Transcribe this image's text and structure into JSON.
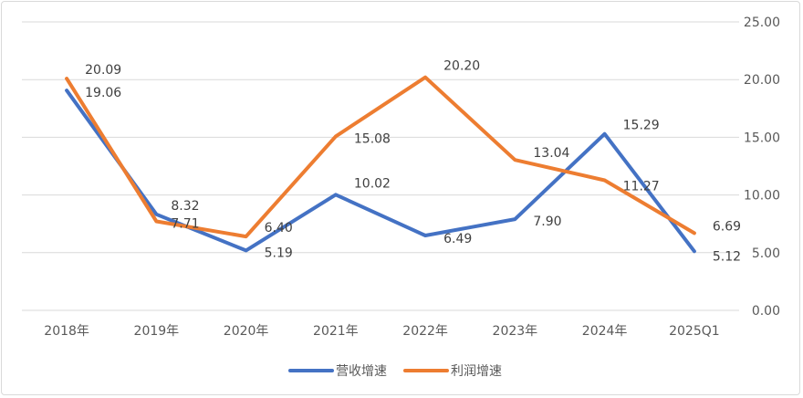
{
  "chart_data": {
    "type": "line",
    "categories": [
      "2018年",
      "2019年",
      "2020年",
      "2021年",
      "2022年",
      "2023年",
      "2024年",
      "2025Q1"
    ],
    "series": [
      {
        "name": "营收增速",
        "color": "#4472C4",
        "values": [
          19.06,
          8.32,
          5.19,
          10.02,
          6.49,
          7.9,
          15.29,
          5.12
        ]
      },
      {
        "name": "利润增速",
        "color": "#ED7D31",
        "values": [
          20.09,
          7.71,
          6.4,
          15.08,
          20.2,
          13.04,
          11.27,
          6.69
        ]
      }
    ],
    "data_labels": [
      [
        "19.06",
        "8.32",
        "5.19",
        "10.02",
        "6.49",
        "7.90",
        "15.29",
        "5.12"
      ],
      [
        "20.09",
        "7.71",
        "6.40",
        "15.08",
        "20.20",
        "13.04",
        "11.27",
        "6.69"
      ]
    ],
    "y_ticks": [
      "0.00",
      "5.00",
      "10.00",
      "15.00",
      "20.00",
      "25.00"
    ],
    "ylim": [
      0,
      25
    ],
    "y_axis_side": "right",
    "grid": true,
    "legend": "bottom"
  }
}
